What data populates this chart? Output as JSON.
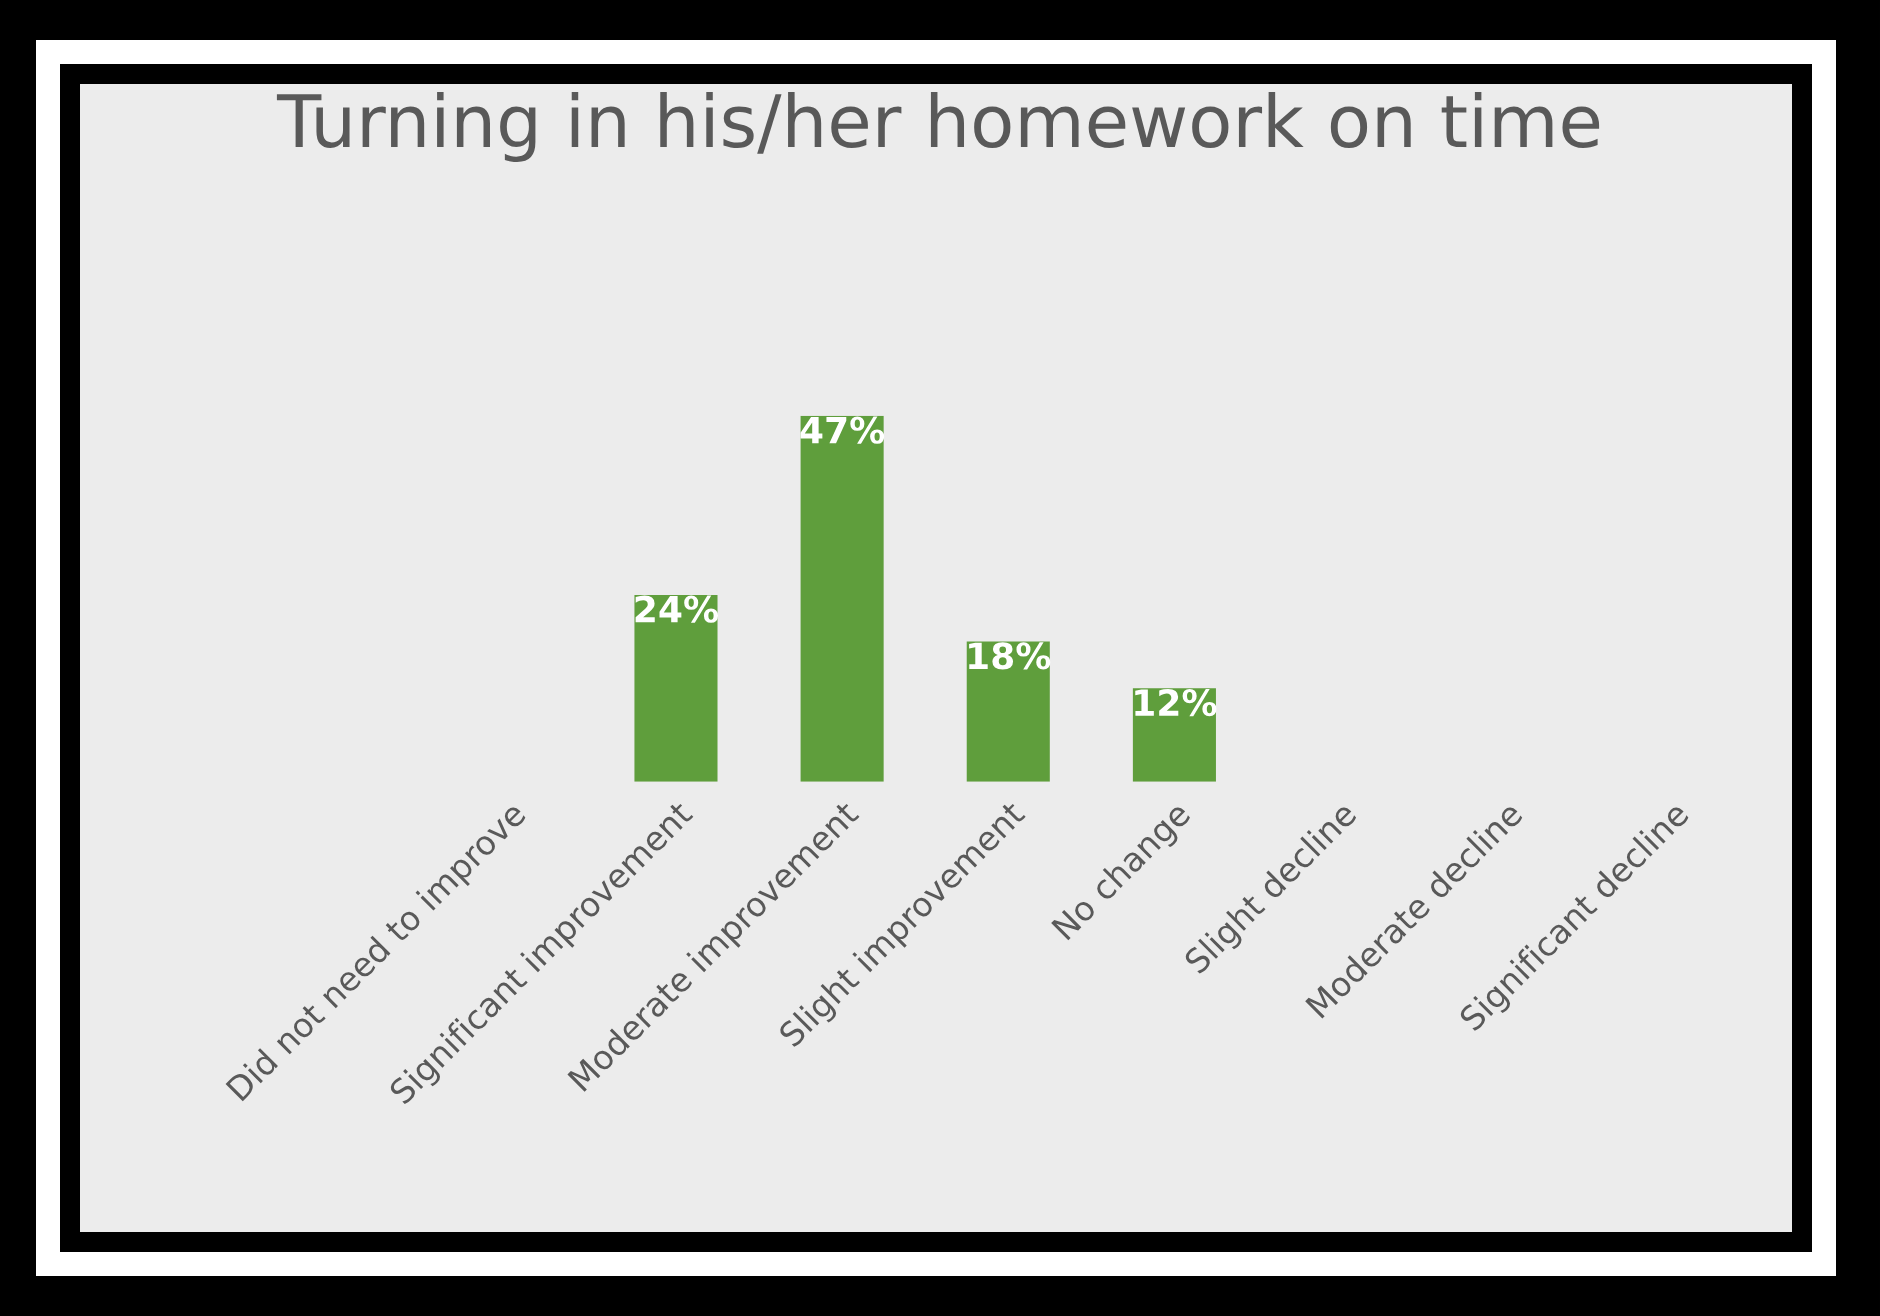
{
  "chart_data": {
    "type": "bar",
    "title": "Turning in his/her homework on time",
    "categories": [
      "Did not need to improve",
      "Significant improvement",
      "Moderate improvement",
      "Slight improvement",
      "No change",
      "Slight decline",
      "Moderate decline",
      "Significant decline"
    ],
    "values": [
      null,
      24,
      47,
      18,
      12,
      null,
      null,
      null
    ],
    "value_labels": [
      null,
      "24%",
      "47%",
      "18%",
      "12%",
      null,
      null,
      null
    ],
    "color": "#5f9e3c"
  }
}
